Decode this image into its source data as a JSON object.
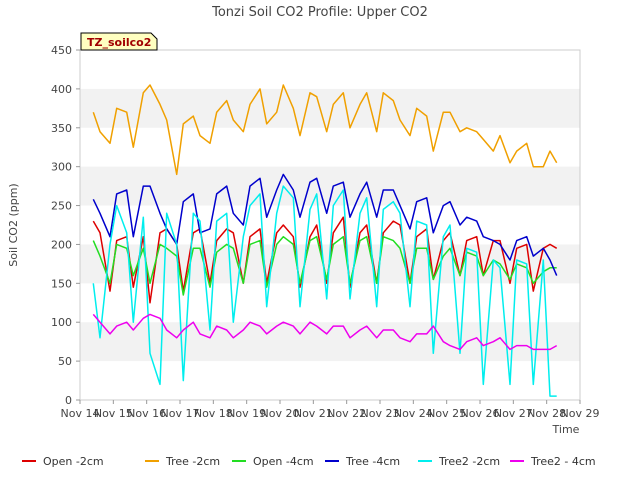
{
  "chart_data": {
    "type": "line",
    "title": "Tonzi Soil CO2 Profile: Upper CO2",
    "badge": "TZ_soilco2",
    "xlabel": "Time",
    "ylabel": "Soil CO2 (ppm)",
    "ylim": [
      0,
      450
    ],
    "yticks": [
      0,
      50,
      100,
      150,
      200,
      250,
      300,
      350,
      400,
      450
    ],
    "xlim": [
      14,
      29
    ],
    "xticks": [
      {
        "v": 14,
        "label": "Nov 14"
      },
      {
        "v": 15,
        "label": "Nov 15"
      },
      {
        "v": 16,
        "label": "Nov 16"
      },
      {
        "v": 17,
        "label": "Nov 17"
      },
      {
        "v": 18,
        "label": "Nov 18"
      },
      {
        "v": 19,
        "label": "Nov 19"
      },
      {
        "v": 20,
        "label": "Nov 20"
      },
      {
        "v": 21,
        "label": "Nov 21"
      },
      {
        "v": 22,
        "label": "Nov 22"
      },
      {
        "v": 23,
        "label": "Nov 23"
      },
      {
        "v": 24,
        "label": "Nov 24"
      },
      {
        "v": 25,
        "label": "Nov 25"
      },
      {
        "v": 26,
        "label": "Nov 26"
      },
      {
        "v": 27,
        "label": "Nov 27"
      },
      {
        "v": 28,
        "label": "Nov 28"
      },
      {
        "v": 29,
        "label": "Nov 29"
      }
    ],
    "grid": "horizontal bands",
    "legend_position": "bottom",
    "series": [
      {
        "name": "Open -2cm",
        "color": "#dd0000",
        "x": [
          14.4,
          14.6,
          14.9,
          15.1,
          15.4,
          15.6,
          15.9,
          16.1,
          16.4,
          16.6,
          16.9,
          17.1,
          17.4,
          17.6,
          17.9,
          18.1,
          18.4,
          18.6,
          18.9,
          19.1,
          19.4,
          19.6,
          19.9,
          20.1,
          20.4,
          20.6,
          20.9,
          21.1,
          21.4,
          21.6,
          21.9,
          22.1,
          22.4,
          22.6,
          22.9,
          23.1,
          23.4,
          23.6,
          23.9,
          24.1,
          24.4,
          24.6,
          24.9,
          25.1,
          25.4,
          25.6,
          25.9,
          26.1,
          26.4,
          26.6,
          26.9,
          27.1,
          27.4,
          27.6,
          27.9,
          28.1,
          28.3
        ],
        "y": [
          230,
          215,
          140,
          205,
          210,
          145,
          210,
          125,
          215,
          220,
          200,
          140,
          215,
          220,
          150,
          205,
          220,
          215,
          150,
          210,
          220,
          150,
          215,
          225,
          210,
          145,
          210,
          225,
          150,
          215,
          235,
          145,
          215,
          225,
          150,
          215,
          230,
          225,
          150,
          210,
          220,
          155,
          205,
          215,
          160,
          205,
          210,
          160,
          205,
          205,
          150,
          195,
          200,
          140,
          195,
          200,
          195
        ]
      },
      {
        "name": "Tree -2cm",
        "color": "#f0a000",
        "x": [
          14.4,
          14.6,
          14.9,
          15.1,
          15.4,
          15.6,
          15.9,
          16.1,
          16.4,
          16.6,
          16.9,
          17.1,
          17.4,
          17.6,
          17.9,
          18.1,
          18.4,
          18.6,
          18.9,
          19.1,
          19.4,
          19.6,
          19.9,
          20.1,
          20.4,
          20.6,
          20.9,
          21.1,
          21.4,
          21.6,
          21.9,
          22.1,
          22.4,
          22.6,
          22.9,
          23.1,
          23.4,
          23.6,
          23.9,
          24.1,
          24.4,
          24.6,
          24.9,
          25.1,
          25.4,
          25.6,
          25.9,
          26.1,
          26.4,
          26.6,
          26.9,
          27.1,
          27.4,
          27.6,
          27.9,
          28.1,
          28.3
        ],
        "y": [
          370,
          345,
          330,
          375,
          370,
          325,
          395,
          405,
          380,
          360,
          290,
          355,
          365,
          340,
          330,
          370,
          385,
          360,
          345,
          380,
          400,
          355,
          370,
          405,
          375,
          340,
          395,
          390,
          345,
          380,
          395,
          350,
          380,
          395,
          345,
          395,
          385,
          360,
          340,
          375,
          365,
          320,
          370,
          370,
          345,
          350,
          345,
          335,
          320,
          340,
          305,
          320,
          330,
          300,
          300,
          320,
          305
        ]
      },
      {
        "name": "Open -4cm",
        "color": "#22dd22",
        "x": [
          14.4,
          14.6,
          14.9,
          15.1,
          15.4,
          15.6,
          15.9,
          16.1,
          16.4,
          16.6,
          16.9,
          17.1,
          17.4,
          17.6,
          17.9,
          18.1,
          18.4,
          18.6,
          18.9,
          19.1,
          19.4,
          19.6,
          19.9,
          20.1,
          20.4,
          20.6,
          20.9,
          21.1,
          21.4,
          21.6,
          21.9,
          22.1,
          22.4,
          22.6,
          22.9,
          23.1,
          23.4,
          23.6,
          23.9,
          24.1,
          24.4,
          24.6,
          24.9,
          25.1,
          25.4,
          25.6,
          25.9,
          26.1,
          26.4,
          26.6,
          26.9,
          27.1,
          27.4,
          27.6,
          27.9,
          28.1,
          28.3
        ],
        "y": [
          205,
          185,
          150,
          200,
          195,
          160,
          195,
          150,
          200,
          195,
          185,
          135,
          195,
          195,
          145,
          190,
          200,
          195,
          150,
          200,
          205,
          145,
          200,
          210,
          200,
          150,
          205,
          210,
          155,
          200,
          210,
          150,
          205,
          210,
          150,
          210,
          205,
          195,
          150,
          195,
          195,
          155,
          185,
          195,
          160,
          190,
          185,
          160,
          180,
          175,
          155,
          175,
          170,
          150,
          165,
          170,
          170
        ]
      },
      {
        "name": "Tree -4cm",
        "color": "#0000cc",
        "x": [
          14.4,
          14.6,
          14.9,
          15.1,
          15.4,
          15.6,
          15.9,
          16.1,
          16.4,
          16.6,
          16.9,
          17.1,
          17.4,
          17.6,
          17.9,
          18.1,
          18.4,
          18.6,
          18.9,
          19.1,
          19.4,
          19.6,
          19.9,
          20.1,
          20.4,
          20.6,
          20.9,
          21.1,
          21.4,
          21.6,
          21.9,
          22.1,
          22.4,
          22.6,
          22.9,
          23.1,
          23.4,
          23.6,
          23.9,
          24.1,
          24.4,
          24.6,
          24.9,
          25.1,
          25.4,
          25.6,
          25.9,
          26.1,
          26.4,
          26.6,
          26.9,
          27.1,
          27.4,
          27.6,
          27.9,
          28.1,
          28.3
        ],
        "y": [
          258,
          240,
          210,
          265,
          270,
          210,
          275,
          275,
          240,
          220,
          200,
          255,
          265,
          215,
          220,
          265,
          275,
          240,
          225,
          275,
          285,
          235,
          270,
          290,
          270,
          235,
          280,
          285,
          240,
          275,
          280,
          235,
          265,
          280,
          235,
          270,
          270,
          250,
          220,
          255,
          260,
          215,
          250,
          255,
          225,
          235,
          230,
          210,
          205,
          200,
          180,
          205,
          210,
          185,
          195,
          180,
          160
        ]
      },
      {
        "name": "Tree2 -2cm",
        "color": "#00eeee",
        "x": [
          14.4,
          14.6,
          14.9,
          15.1,
          15.4,
          15.6,
          15.9,
          16.1,
          16.4,
          16.6,
          16.9,
          17.1,
          17.4,
          17.6,
          17.9,
          18.1,
          18.4,
          18.6,
          18.9,
          19.1,
          19.4,
          19.6,
          19.9,
          20.1,
          20.4,
          20.6,
          20.9,
          21.1,
          21.4,
          21.6,
          21.9,
          22.1,
          22.4,
          22.6,
          22.9,
          23.1,
          23.4,
          23.6,
          23.9,
          24.1,
          24.4,
          24.6,
          24.9,
          25.1,
          25.4,
          25.6,
          25.9,
          26.1,
          26.4,
          26.6,
          26.9,
          27.1,
          27.4,
          27.6,
          27.9,
          28.1,
          28.3
        ],
        "y": [
          150,
          80,
          200,
          250,
          215,
          100,
          235,
          60,
          20,
          240,
          200,
          25,
          240,
          230,
          90,
          230,
          240,
          100,
          210,
          250,
          265,
          120,
          240,
          275,
          260,
          120,
          245,
          265,
          130,
          250,
          270,
          130,
          240,
          260,
          120,
          245,
          255,
          240,
          120,
          230,
          225,
          60,
          210,
          225,
          60,
          195,
          190,
          20,
          180,
          170,
          20,
          180,
          175,
          20,
          180,
          5,
          5
        ]
      },
      {
        "name": "Tree2 - 4cm",
        "color": "#ee00ee",
        "x": [
          14.4,
          14.6,
          14.9,
          15.1,
          15.4,
          15.6,
          15.9,
          16.1,
          16.4,
          16.6,
          16.9,
          17.1,
          17.4,
          17.6,
          17.9,
          18.1,
          18.4,
          18.6,
          18.9,
          19.1,
          19.4,
          19.6,
          19.9,
          20.1,
          20.4,
          20.6,
          20.9,
          21.1,
          21.4,
          21.6,
          21.9,
          22.1,
          22.4,
          22.6,
          22.9,
          23.1,
          23.4,
          23.6,
          23.9,
          24.1,
          24.4,
          24.6,
          24.9,
          25.1,
          25.4,
          25.6,
          25.9,
          26.1,
          26.4,
          26.6,
          26.9,
          27.1,
          27.4,
          27.6,
          27.9,
          28.1,
          28.3
        ],
        "y": [
          110,
          100,
          85,
          95,
          100,
          90,
          105,
          110,
          105,
          90,
          80,
          90,
          100,
          85,
          80,
          95,
          90,
          80,
          90,
          100,
          95,
          85,
          95,
          100,
          95,
          85,
          100,
          95,
          85,
          95,
          95,
          80,
          90,
          95,
          80,
          90,
          90,
          80,
          75,
          85,
          85,
          95,
          75,
          70,
          65,
          75,
          80,
          70,
          75,
          80,
          65,
          70,
          70,
          65,
          65,
          65,
          70
        ]
      }
    ]
  }
}
